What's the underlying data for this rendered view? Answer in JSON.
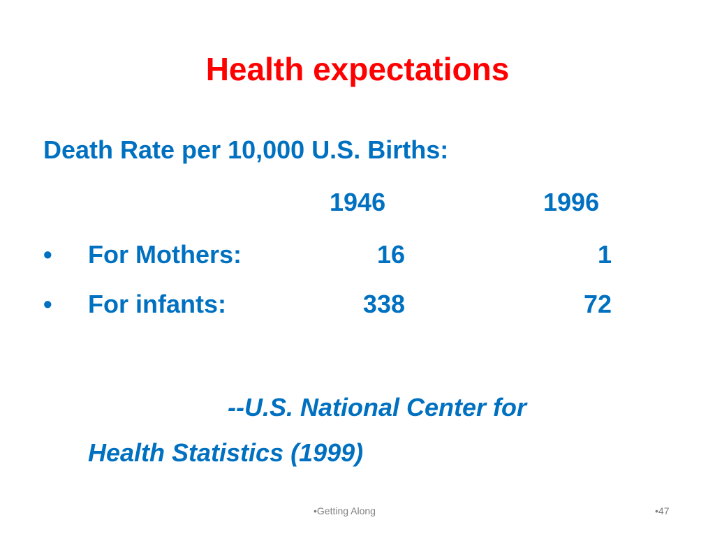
{
  "slide": {
    "title": "Health expectations",
    "heading": "Death Rate per 10,000 U.S. Births:",
    "columns": [
      "1946",
      "1996"
    ],
    "bullet_glyph": "•",
    "rows": [
      {
        "label": "For Mothers:",
        "values": [
          "16",
          "1"
        ]
      },
      {
        "label": "For infants:",
        "values": [
          "338",
          "72"
        ]
      }
    ],
    "source": {
      "line1": "--U.S. National Center for",
      "line2": "Health Statistics (1999)"
    },
    "footer": {
      "center": "•Getting Along",
      "page": "•47"
    },
    "colors": {
      "title": "#ff0000",
      "body": "#0070c0",
      "footer": "#7f7f7f"
    }
  }
}
